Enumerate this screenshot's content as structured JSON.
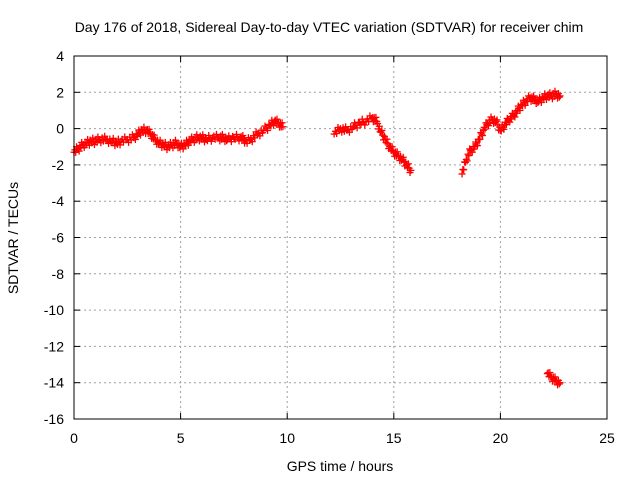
{
  "chart_data": {
    "type": "scatter",
    "title": "Day 176 of 2018, Sidereal Day-to-day VTEC variation (SDTVAR) for receiver chim",
    "xlabel": "GPS time / hours",
    "ylabel": "SDTVAR / TECUs",
    "xlim": [
      0,
      25
    ],
    "ylim": [
      -16,
      4
    ],
    "x_ticks": [
      0,
      5,
      10,
      15,
      20,
      25
    ],
    "y_ticks": [
      4,
      2,
      0,
      -2,
      -4,
      -6,
      -8,
      -10,
      -12,
      -14,
      -16
    ],
    "grid": true,
    "marker": "+",
    "color": "#ff0000",
    "series": [
      {
        "name": "SDTVAR",
        "segments": [
          {
            "x": [
              0.0,
              0.2,
              0.4,
              0.6,
              0.8,
              1.0,
              1.2,
              1.5,
              1.8,
              2.0,
              2.2,
              2.5,
              2.8,
              3.0,
              3.2,
              3.4,
              3.6,
              3.8,
              4.0,
              4.2,
              4.4,
              4.6,
              4.8,
              5.0,
              5.2,
              5.4,
              5.6,
              5.8,
              6.0,
              6.2,
              6.5,
              6.8,
              7.0,
              7.2,
              7.5,
              7.8,
              8.0
            ],
            "y": [
              -1.3,
              -1.1,
              -0.9,
              -0.8,
              -0.7,
              -0.7,
              -0.6,
              -0.6,
              -0.7,
              -0.8,
              -0.7,
              -0.6,
              -0.5,
              -0.3,
              -0.1,
              -0.1,
              -0.3,
              -0.6,
              -0.8,
              -0.9,
              -1.0,
              -0.9,
              -0.8,
              -1.0,
              -0.9,
              -0.7,
              -0.6,
              -0.5,
              -0.5,
              -0.6,
              -0.5,
              -0.5,
              -0.5,
              -0.6,
              -0.5,
              -0.5,
              -0.6
            ]
          },
          {
            "x": [
              8.0,
              8.3,
              8.6,
              8.9,
              9.2,
              9.4,
              9.6,
              9.8
            ],
            "y": [
              -0.8,
              -0.6,
              -0.3,
              -0.1,
              0.2,
              0.4,
              0.3,
              0.1
            ]
          },
          {
            "x": [
              12.2,
              12.5,
              12.8,
              13.1,
              13.4,
              13.7,
              14.0,
              14.2,
              14.4,
              14.6,
              14.8,
              15.0,
              15.2,
              15.4,
              15.6,
              15.8
            ],
            "y": [
              -0.3,
              0.0,
              -0.1,
              0.1,
              0.3,
              0.4,
              0.6,
              0.4,
              -0.2,
              -0.6,
              -1.0,
              -1.3,
              -1.5,
              -1.7,
              -2.0,
              -2.3
            ]
          },
          {
            "x": [
              18.2,
              18.4,
              18.6,
              18.8,
              19.0,
              19.2,
              19.4,
              19.6,
              19.8,
              20.0,
              20.2,
              20.4,
              20.6,
              20.8,
              21.0,
              21.2,
              21.4,
              21.6,
              21.8,
              22.0,
              22.2,
              22.4,
              22.6,
              22.8
            ],
            "y": [
              -2.5,
              -1.7,
              -1.2,
              -1.0,
              -0.6,
              -0.1,
              0.3,
              0.5,
              0.4,
              -0.1,
              0.2,
              0.5,
              0.7,
              1.0,
              1.3,
              1.5,
              1.7,
              1.6,
              1.5,
              1.7,
              1.8,
              1.8,
              1.9,
              1.8
            ]
          },
          {
            "x": [
              22.2,
              22.4,
              22.6,
              22.8
            ],
            "y": [
              -13.5,
              -13.7,
              -13.9,
              -14.0
            ]
          }
        ]
      }
    ]
  }
}
